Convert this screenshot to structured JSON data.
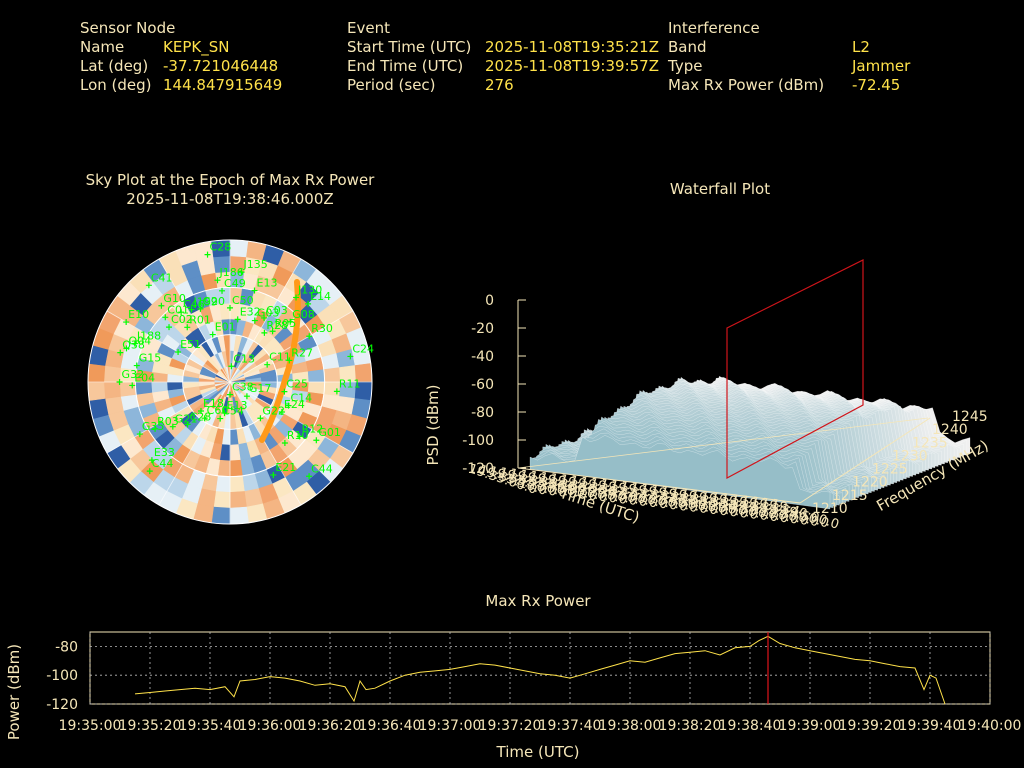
{
  "info": {
    "sensor": {
      "heading": "Sensor Node",
      "rows": [
        {
          "label": "Name",
          "value": "KEPK_SN"
        },
        {
          "label": "Lat (deg)",
          "value": "-37.721046448"
        },
        {
          "label": "Lon (deg)",
          "value": "144.847915649"
        }
      ]
    },
    "event": {
      "heading": "Event",
      "rows": [
        {
          "label": "Start Time (UTC)",
          "value": "2025-11-08T19:35:21Z"
        },
        {
          "label": "End Time (UTC)",
          "value": "2025-11-08T19:39:57Z"
        },
        {
          "label": "Period (sec)",
          "value": "276"
        }
      ]
    },
    "interference": {
      "heading": "Interference",
      "rows": [
        {
          "label": "Band",
          "value": "L2"
        },
        {
          "label": "Type",
          "value": "Jammer"
        },
        {
          "label": "Max Rx Power (dBm)",
          "value": "-72.45"
        }
      ]
    }
  },
  "chart_data": [
    {
      "type": "scatter",
      "subtype": "polar-sky-plot",
      "title": "Sky Plot at the Epoch of Max Rx Power",
      "subtitle": "2025-11-08T19:38:46.000Z",
      "satellite_color": "#00ff00",
      "trace_color": "#ff9a1a",
      "satellites": [
        {
          "name": "C28",
          "az": 350,
          "el": 8
        },
        {
          "name": "J135",
          "az": 6,
          "el": 20
        },
        {
          "name": "J130",
          "az": 38,
          "el": 22
        },
        {
          "name": "J186",
          "az": 353,
          "el": 25
        },
        {
          "name": "E14",
          "az": 45,
          "el": 20
        },
        {
          "name": "C41",
          "az": 320,
          "el": 10
        },
        {
          "name": "E13",
          "az": 15,
          "el": 30
        },
        {
          "name": "C49",
          "az": 355,
          "el": 32
        },
        {
          "name": "G08",
          "az": 45,
          "el": 36
        },
        {
          "name": "G10",
          "az": 318,
          "el": 25
        },
        {
          "name": "E10",
          "az": 300,
          "el": 14
        },
        {
          "name": "C01",
          "az": 315,
          "el": 32
        },
        {
          "name": "C46",
          "az": 325,
          "el": 36
        },
        {
          "name": "J199",
          "az": 332,
          "el": 38
        },
        {
          "name": "G20",
          "az": 338,
          "el": 40
        },
        {
          "name": "C50",
          "az": 360,
          "el": 43
        },
        {
          "name": "G03",
          "az": 22,
          "el": 48
        },
        {
          "name": "C03",
          "az": 28,
          "el": 44
        },
        {
          "name": "R05",
          "az": 40,
          "el": 48
        },
        {
          "name": "C02",
          "az": 312,
          "el": 38
        },
        {
          "name": "R01",
          "az": 322,
          "el": 46
        },
        {
          "name": "E32",
          "az": 7,
          "el": 50
        },
        {
          "name": "R28",
          "az": 35,
          "el": 52
        },
        {
          "name": "R30",
          "az": 60,
          "el": 32
        },
        {
          "name": "J188",
          "az": 292,
          "el": 25
        },
        {
          "name": "Q04",
          "az": 288,
          "el": 21
        },
        {
          "name": "Q38",
          "az": 285,
          "el": 18
        },
        {
          "name": "E01",
          "az": 340,
          "el": 58
        },
        {
          "name": "C24",
          "az": 78,
          "el": 12
        },
        {
          "name": "G15",
          "az": 280,
          "el": 30
        },
        {
          "name": "E51",
          "az": 300,
          "el": 52
        },
        {
          "name": "R27",
          "az": 70,
          "el": 50
        },
        {
          "name": "C13",
          "az": 5,
          "el": 80
        },
        {
          "name": "C11",
          "az": 65,
          "el": 64
        },
        {
          "name": "G32",
          "az": 270,
          "el": 20
        },
        {
          "name": "E04",
          "az": 268,
          "el": 28
        },
        {
          "name": "C25",
          "az": 100,
          "el": 55
        },
        {
          "name": "C38",
          "az": 180,
          "el": 82
        },
        {
          "name": "G17",
          "az": 130,
          "el": 76
        },
        {
          "name": "R11",
          "az": 95,
          "el": 22
        },
        {
          "name": "C54",
          "az": 195,
          "el": 66
        },
        {
          "name": "E24",
          "az": 120,
          "el": 52
        },
        {
          "name": "C14",
          "az": 112,
          "el": 50
        },
        {
          "name": "E18",
          "az": 225,
          "el": 64
        },
        {
          "name": "C60",
          "az": 215,
          "el": 62
        },
        {
          "name": "G22",
          "az": 140,
          "el": 60
        },
        {
          "name": "C28",
          "az": 225,
          "el": 52
        },
        {
          "name": "E13",
          "az": 190,
          "el": 70
        },
        {
          "name": "G21",
          "az": 232,
          "el": 44
        },
        {
          "name": "R03",
          "az": 238,
          "el": 34
        },
        {
          "name": "R12",
          "az": 128,
          "el": 34
        },
        {
          "name": "R10",
          "az": 138,
          "el": 38
        },
        {
          "name": "G01",
          "az": 124,
          "el": 24
        },
        {
          "name": "E21",
          "az": 155,
          "el": 25
        },
        {
          "name": "G35",
          "az": 240,
          "el": 24
        },
        {
          "name": "C44",
          "az": 140,
          "el": 12
        },
        {
          "name": "E33",
          "az": 225,
          "el": 20
        },
        {
          "name": "C44",
          "az": 222,
          "el": 14
        }
      ]
    },
    {
      "type": "area",
      "subtype": "3d-waterfall",
      "title": "Waterfall Plot",
      "zlabel": "PSD (dBm)",
      "xlabel": "Time (UTC)",
      "ylabel": "Frequency (MHz)",
      "zticks": [
        0,
        -20,
        -40,
        -60,
        -80,
        -100,
        -120
      ],
      "freq_ticks": [
        1210,
        1215,
        1220,
        1225,
        1230,
        1235,
        1240,
        1245
      ],
      "time_ticks": [
        "19:35:00.0",
        "19:35:10.0",
        "19:35:20.0",
        "19:35:30.0",
        "19:35:40.0",
        "19:35:50.0",
        "19:36:00.0",
        "19:36:10.0",
        "19:36:20.0",
        "19:36:30.0",
        "19:36:40.0",
        "19:36:50.0",
        "19:37:00.0",
        "19:37:10.0",
        "19:37:20.0",
        "19:37:30.0",
        "19:37:40.0",
        "19:37:50.0",
        "19:38:00.0",
        "19:38:10.0",
        "19:38:20.0",
        "19:38:30.0",
        "19:38:40.0",
        "19:38:50.0",
        "19:39:00.0",
        "19:39:10.0",
        "19:39:20.0",
        "19:39:30.0",
        "19:39:40.0",
        "19:39:50.0",
        "19:40:00.0"
      ],
      "marker_time": "19:38:46",
      "marker_color": "#d0141a"
    },
    {
      "type": "line",
      "title": "Max Rx Power",
      "xlabel": "Time (UTC)",
      "ylabel": "Power (dBm)",
      "ylim": [
        -120,
        -70
      ],
      "yticks": [
        -80,
        -100,
        -120
      ],
      "xticks": [
        "19:35:00",
        "19:35:20",
        "19:35:40",
        "19:36:00",
        "19:36:20",
        "19:36:40",
        "19:37:00",
        "19:37:20",
        "19:37:40",
        "19:38:00",
        "19:38:20",
        "19:38:40",
        "19:39:00",
        "19:39:20",
        "19:39:40",
        "19:40:00"
      ],
      "xlim_sec": [
        0,
        300
      ],
      "line_color": "#ffe24a",
      "marker_sec": 226,
      "marker_color": "#e0141a",
      "series": [
        {
          "x": [
            15,
            20,
            25,
            30,
            35,
            40,
            45,
            48,
            50,
            55,
            60,
            65,
            70,
            75,
            80,
            85,
            88,
            90,
            92,
            95,
            100,
            105,
            110,
            115,
            120,
            125,
            130,
            135,
            140,
            145,
            150,
            155,
            160,
            165,
            170,
            175,
            180,
            185,
            190,
            195,
            200,
            205,
            210,
            215,
            220,
            223,
            226,
            230,
            235,
            240,
            245,
            250,
            255,
            260,
            265,
            270,
            275,
            278,
            280,
            282,
            285
          ],
          "y": [
            -113,
            -112,
            -111,
            -110,
            -109,
            -110,
            -108,
            -115,
            -104,
            -103,
            -101,
            -102,
            -104,
            -107,
            -106,
            -108,
            -118,
            -104,
            -110,
            -109,
            -104,
            -100,
            -98,
            -97,
            -96,
            -94,
            -92,
            -93,
            -95,
            -97,
            -99,
            -100,
            -102,
            -99,
            -96,
            -93,
            -90,
            -91,
            -88,
            -85,
            -84,
            -83,
            -86,
            -81,
            -80,
            -76,
            -73,
            -78,
            -81,
            -83,
            -85,
            -87,
            -89,
            -90,
            -92,
            -94,
            -95,
            -110,
            -100,
            -102,
            -122
          ]
        }
      ]
    }
  ]
}
